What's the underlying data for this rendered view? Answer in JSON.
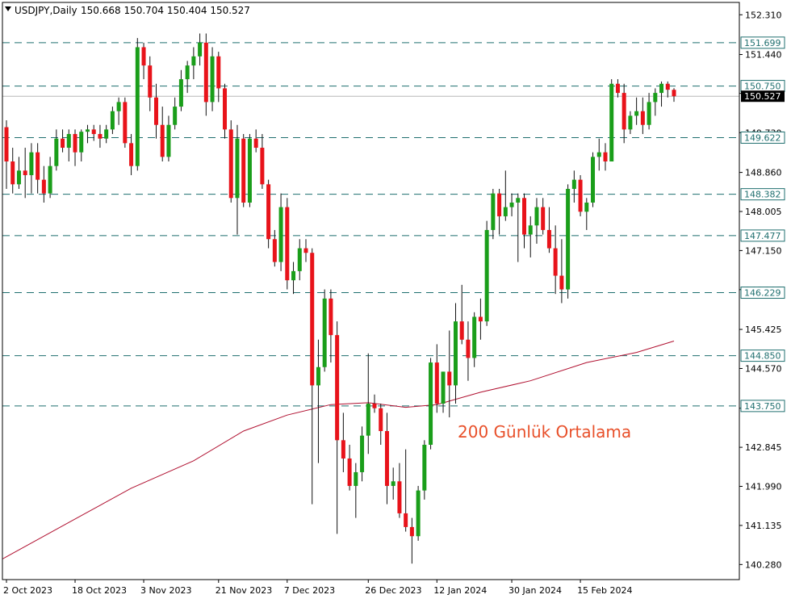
{
  "header": {
    "symbol_timeframe": "USDJPY,Daily",
    "ohlc": "150.668 150.704 150.404 150.527"
  },
  "annotation": "200 Günlük Ortalama",
  "colors": {
    "bull": "#1a9e1a",
    "bear": "#e8131a",
    "wick": "#111111",
    "level_line": "#1f6f6f",
    "ma_line": "#b01030",
    "annotation": "#e8502a",
    "price_tag_bg": "#000000"
  },
  "chart_data": {
    "type": "candlestick",
    "timeframe": "Daily",
    "y_ticks": [
      "152.310",
      "151.440",
      "150.590",
      "149.730",
      "148.860",
      "148.005",
      "147.150",
      "146.295",
      "145.425",
      "144.570",
      "143.700",
      "142.845",
      "141.990",
      "141.135",
      "140.280"
    ],
    "x_ticks": [
      "2 Oct 2023",
      "18 Oct 2023",
      "3 Nov 2023",
      "21 Nov 2023",
      "7 Dec 2023",
      "26 Dec 2023",
      "12 Jan 2024",
      "30 Jan 2024",
      "15 Feb 2024"
    ],
    "ylim": [
      139.95,
      152.58
    ],
    "levels": [
      "151.699",
      "150.750",
      "149.622",
      "148.382",
      "147.477",
      "146.229",
      "144.850",
      "143.750"
    ],
    "current_price": "150.527",
    "ma_label": "200 Günlük Ortalama",
    "ma_period": 200,
    "ma_points": [
      [
        0,
        140.45
      ],
      [
        10,
        141.2
      ],
      [
        20,
        141.95
      ],
      [
        30,
        142.55
      ],
      [
        38,
        143.2
      ],
      [
        45,
        143.55
      ],
      [
        52,
        143.78
      ],
      [
        58,
        143.82
      ],
      [
        64,
        143.72
      ],
      [
        69,
        143.78
      ],
      [
        76,
        144.05
      ],
      [
        84,
        144.3
      ],
      [
        93,
        144.7
      ],
      [
        101,
        144.92
      ],
      [
        107,
        145.17
      ]
    ],
    "candles": [
      [
        149.85,
        150.0,
        148.5,
        149.1
      ],
      [
        149.1,
        149.4,
        148.4,
        148.6
      ],
      [
        148.6,
        149.2,
        148.5,
        148.9
      ],
      [
        148.9,
        149.4,
        148.3,
        148.8
      ],
      [
        148.8,
        149.5,
        148.4,
        149.3
      ],
      [
        149.3,
        149.5,
        148.4,
        148.7
      ],
      [
        148.7,
        149.0,
        148.2,
        148.4
      ],
      [
        148.4,
        149.2,
        148.3,
        149.0
      ],
      [
        149.0,
        149.8,
        148.9,
        149.6
      ],
      [
        149.6,
        149.8,
        149.3,
        149.4
      ],
      [
        149.4,
        149.8,
        149.1,
        149.7
      ],
      [
        149.7,
        149.8,
        149.0,
        149.3
      ],
      [
        149.3,
        149.8,
        149.1,
        149.75
      ],
      [
        149.75,
        149.9,
        149.5,
        149.8
      ],
      [
        149.8,
        149.9,
        149.55,
        149.7
      ],
      [
        149.7,
        149.9,
        149.4,
        149.6
      ],
      [
        149.6,
        149.9,
        149.5,
        149.8
      ],
      [
        149.8,
        150.3,
        149.7,
        150.2
      ],
      [
        150.2,
        150.5,
        149.9,
        150.4
      ],
      [
        150.4,
        150.5,
        149.4,
        149.5
      ],
      [
        149.5,
        149.7,
        148.8,
        149.0
      ],
      [
        149.0,
        151.8,
        148.9,
        151.6
      ],
      [
        151.6,
        151.7,
        150.9,
        151.2
      ],
      [
        151.2,
        151.4,
        150.2,
        150.5
      ],
      [
        150.5,
        150.8,
        149.6,
        149.9
      ],
      [
        149.9,
        150.3,
        149.1,
        149.2
      ],
      [
        149.2,
        150.1,
        149.1,
        149.9
      ],
      [
        149.9,
        150.5,
        149.8,
        150.3
      ],
      [
        150.3,
        151.1,
        150.2,
        150.9
      ],
      [
        150.9,
        151.3,
        150.6,
        151.2
      ],
      [
        151.2,
        151.6,
        150.9,
        151.4
      ],
      [
        151.4,
        151.9,
        151.2,
        151.7
      ],
      [
        151.7,
        151.9,
        150.1,
        150.4
      ],
      [
        150.4,
        151.6,
        150.2,
        151.4
      ],
      [
        151.4,
        151.5,
        150.4,
        150.7
      ],
      [
        150.7,
        150.8,
        149.6,
        149.8
      ],
      [
        149.8,
        150.0,
        148.2,
        148.3
      ],
      [
        148.3,
        149.9,
        147.5,
        149.6
      ],
      [
        149.6,
        149.7,
        148.1,
        148.2
      ],
      [
        148.2,
        149.7,
        148.1,
        149.6
      ],
      [
        149.6,
        149.8,
        149.3,
        149.4
      ],
      [
        149.4,
        149.7,
        148.5,
        148.6
      ],
      [
        148.6,
        148.7,
        147.2,
        147.4
      ],
      [
        147.4,
        147.6,
        146.8,
        146.9
      ],
      [
        146.9,
        148.4,
        146.7,
        148.1
      ],
      [
        148.1,
        148.3,
        146.3,
        146.5
      ],
      [
        146.5,
        146.9,
        146.2,
        146.7
      ],
      [
        146.7,
        147.4,
        146.5,
        147.2
      ],
      [
        147.2,
        147.4,
        146.9,
        147.1
      ],
      [
        147.1,
        147.2,
        141.6,
        144.2
      ],
      [
        144.2,
        145.2,
        142.5,
        144.6
      ],
      [
        144.6,
        146.3,
        144.5,
        146.1
      ],
      [
        146.1,
        146.3,
        144.7,
        145.3
      ],
      [
        145.3,
        145.6,
        140.95,
        143.0
      ],
      [
        143.0,
        143.6,
        142.3,
        142.6
      ],
      [
        142.6,
        142.9,
        141.9,
        142.0
      ],
      [
        142.0,
        142.5,
        141.3,
        142.3
      ],
      [
        142.3,
        143.3,
        142.1,
        143.1
      ],
      [
        143.1,
        144.9,
        142.7,
        143.8
      ],
      [
        143.8,
        144.0,
        143.6,
        143.7
      ],
      [
        143.7,
        143.8,
        142.9,
        143.2
      ],
      [
        143.2,
        143.6,
        141.6,
        142.0
      ],
      [
        142.0,
        142.4,
        141.7,
        142.1
      ],
      [
        142.1,
        142.5,
        141.3,
        141.4
      ],
      [
        141.4,
        142.8,
        141.0,
        141.1
      ],
      [
        141.1,
        141.3,
        140.3,
        140.9
      ],
      [
        140.9,
        142.0,
        140.8,
        141.9
      ],
      [
        141.9,
        143.0,
        141.7,
        142.9
      ],
      [
        142.9,
        144.8,
        142.8,
        144.7
      ],
      [
        144.7,
        145.1,
        143.6,
        143.8
      ],
      [
        143.8,
        144.5,
        143.6,
        144.5
      ],
      [
        144.5,
        145.4,
        143.5,
        144.2
      ],
      [
        144.2,
        146.0,
        143.8,
        145.6
      ],
      [
        145.6,
        146.4,
        145.1,
        145.2
      ],
      [
        145.2,
        145.6,
        144.3,
        144.8
      ],
      [
        144.8,
        145.8,
        144.6,
        145.7
      ],
      [
        145.7,
        146.1,
        145.2,
        145.6
      ],
      [
        145.6,
        147.8,
        145.5,
        147.6
      ],
      [
        147.6,
        148.5,
        147.4,
        148.4
      ],
      [
        148.4,
        148.5,
        147.5,
        147.9
      ],
      [
        147.9,
        148.9,
        147.8,
        148.1
      ],
      [
        148.1,
        148.4,
        147.9,
        148.2
      ],
      [
        148.2,
        148.4,
        146.9,
        148.3
      ],
      [
        148.3,
        148.4,
        147.2,
        147.5
      ],
      [
        147.5,
        147.9,
        147.0,
        147.7
      ],
      [
        147.7,
        148.3,
        147.3,
        148.1
      ],
      [
        148.1,
        148.3,
        147.5,
        147.6
      ],
      [
        147.6,
        148.1,
        147.1,
        147.2
      ],
      [
        147.2,
        147.7,
        146.2,
        146.6
      ],
      [
        146.6,
        147.4,
        146.0,
        146.3
      ],
      [
        146.3,
        148.6,
        146.1,
        148.5
      ],
      [
        148.5,
        148.9,
        148.2,
        148.7
      ],
      [
        148.7,
        148.8,
        147.9,
        148.0
      ],
      [
        148.0,
        148.3,
        147.6,
        148.2
      ],
      [
        148.2,
        149.3,
        148.1,
        149.2
      ],
      [
        149.2,
        149.6,
        148.9,
        149.3
      ],
      [
        149.3,
        149.5,
        148.9,
        149.1
      ],
      [
        149.1,
        150.9,
        149.1,
        150.8
      ],
      [
        150.8,
        150.9,
        150.5,
        150.6
      ],
      [
        150.6,
        150.8,
        149.5,
        149.8
      ],
      [
        149.8,
        150.2,
        149.7,
        150.1
      ],
      [
        150.1,
        150.5,
        149.9,
        150.2
      ],
      [
        150.2,
        150.5,
        149.7,
        149.9
      ],
      [
        149.9,
        150.6,
        149.8,
        150.4
      ],
      [
        150.4,
        150.7,
        150.1,
        150.6
      ],
      [
        150.6,
        150.85,
        150.3,
        150.8
      ],
      [
        150.8,
        150.85,
        150.5,
        150.67
      ],
      [
        150.668,
        150.704,
        150.404,
        150.527
      ]
    ]
  }
}
